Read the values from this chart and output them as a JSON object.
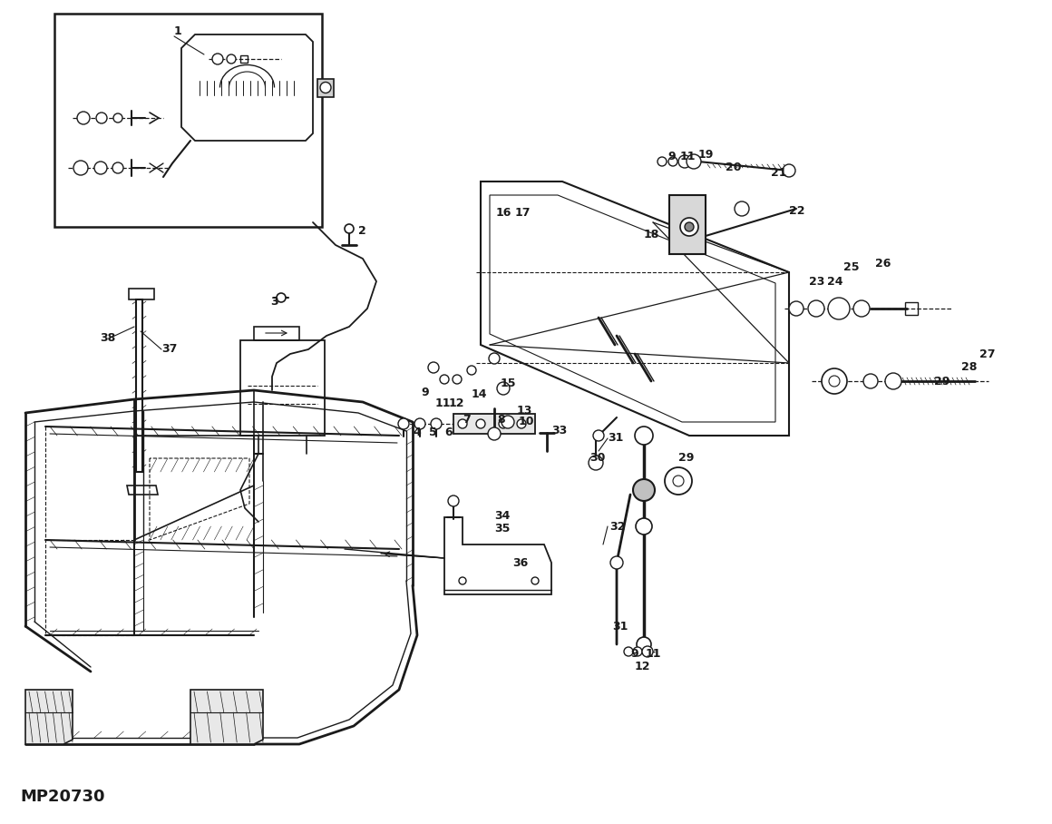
{
  "bg_color": "#ffffff",
  "line_color": "#1a1a1a",
  "catalog_num": "MP20730",
  "figsize": [
    11.6,
    9.08
  ],
  "dpi": 100
}
